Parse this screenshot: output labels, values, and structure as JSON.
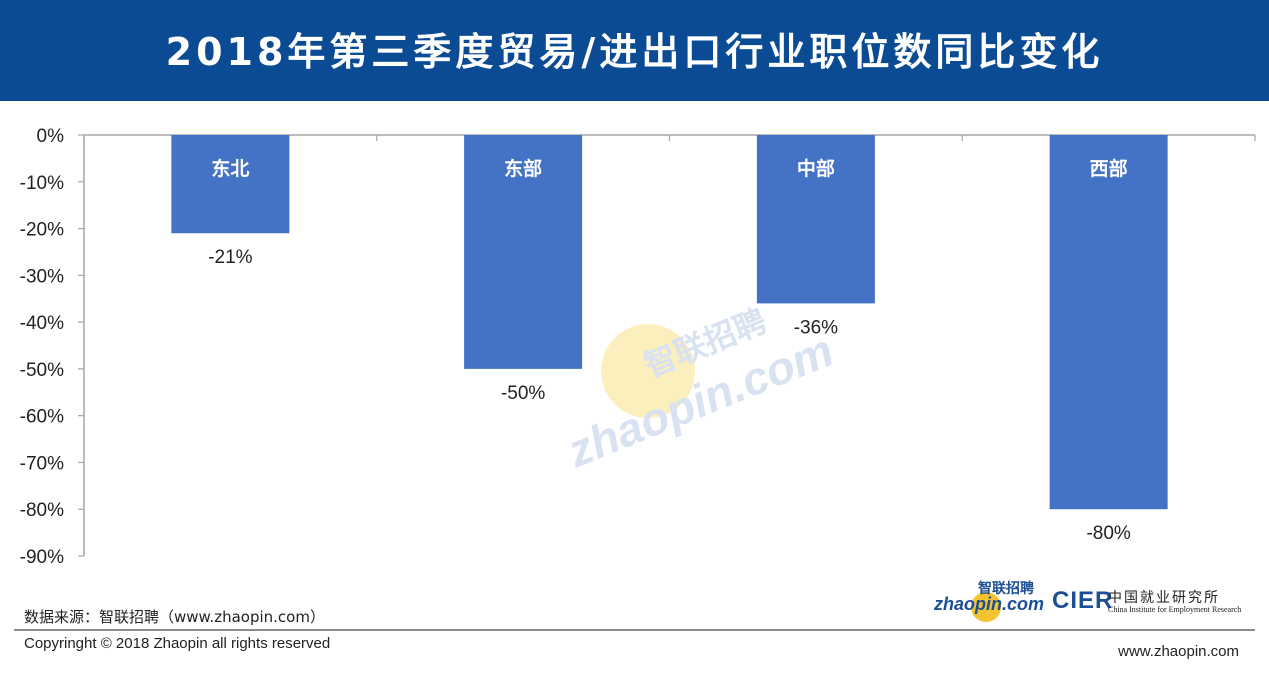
{
  "header": {
    "title": "2018年第三季度贸易/进出口行业职位数同比变化"
  },
  "chart_data": {
    "type": "bar",
    "categories": [
      "东北",
      "东部",
      "中部",
      "西部"
    ],
    "values": [
      -21,
      -50,
      -36,
      -80
    ],
    "data_labels": [
      "-21%",
      "-50%",
      "-36%",
      "-80%"
    ],
    "yticks": [
      "0%",
      "-10%",
      "-20%",
      "-30%",
      "-40%",
      "-50%",
      "-60%",
      "-70%",
      "-80%",
      "-90%"
    ],
    "ylim": [
      -90,
      0
    ],
    "bar_color": "#4472c4",
    "category_label_position": "inside-top",
    "grid": false
  },
  "watermark": {
    "brand_cn": "智联招聘",
    "brand_en": "zhaopin.com"
  },
  "footer": {
    "source": "数据来源：智联招聘（www.zhaopin.com）",
    "copyright": "Copyringht © 2018 Zhaopin all rights reserved",
    "site": "www.zhaopin.com"
  },
  "logos": {
    "zhaopin_cn": "智联招聘",
    "zhaopin_en": "zhaopin.com",
    "cier_abbr": "CIER",
    "cier_cn": "中国就业研究所",
    "cier_en": "China Institute for Employment Research"
  },
  "colors": {
    "header_bg": "#0a4b94",
    "bar": "#4472c4",
    "axis": "#a6a6a6",
    "watermark_circle": "#fbe38a"
  }
}
